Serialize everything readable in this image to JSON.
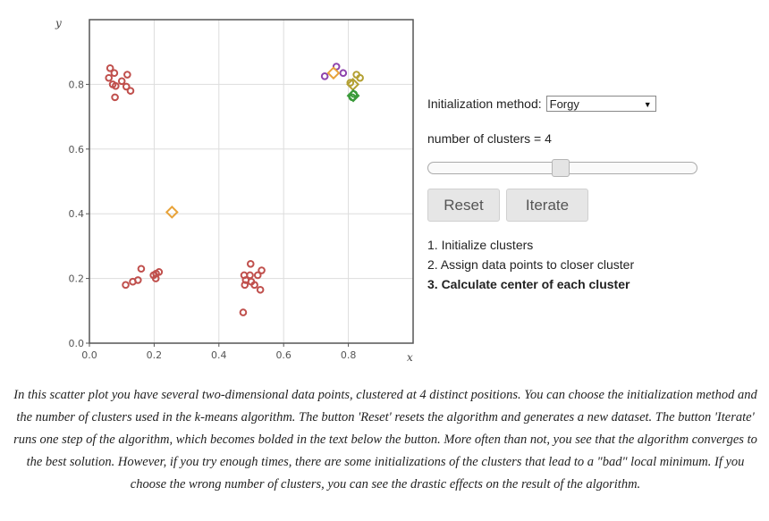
{
  "controls": {
    "init_label": "Initialization method:",
    "init_selected": "Forgy",
    "clusters_label": "number of clusters = 4",
    "slider_value_fraction": 0.49,
    "reset_label": "Reset",
    "iterate_label": "Iterate",
    "steps": [
      {
        "label": "1. Initialize clusters",
        "active": false
      },
      {
        "label": "2. Assign data points to closer cluster",
        "active": false
      },
      {
        "label": "3. Calculate center of each cluster",
        "active": true
      }
    ]
  },
  "description": "In this scatter plot you have several two-dimensional data points, clustered at 4 distinct positions. You can choose the initialization method and the number of clusters used in the k-means algorithm. The button 'Reset' resets the algorithm and generates a new dataset. The button 'Iterate' runs one step of the algorithm, which becomes bolded in the text below the button. More often than not, you see that the algorithm converges to the best solution. However, if you try enough times, there are some initializations of the clusters that lead to a \"bad\" local minimum. If you choose the wrong number of clusters, you can see the drastic effects on the result of the algorithm.",
  "chart_data": {
    "type": "scatter",
    "xlabel": "x",
    "ylabel": "y",
    "xlim": [
      0,
      1
    ],
    "ylim": [
      0,
      1
    ],
    "xticks": [
      "0.0",
      "0.2",
      "0.4",
      "0.6",
      "0.8"
    ],
    "yticks": [
      "0.0",
      "0.2",
      "0.4",
      "0.6",
      "0.8"
    ],
    "grid": true,
    "colors": {
      "red": "#c0504d",
      "purple": "#8e44ad",
      "olive": "#b3a032",
      "green": "#3a9a3a",
      "orange": "#e8a33a"
    },
    "points": [
      {
        "x": 0.064,
        "y": 0.85,
        "c": "red"
      },
      {
        "x": 0.077,
        "y": 0.835,
        "c": "red"
      },
      {
        "x": 0.06,
        "y": 0.82,
        "c": "red"
      },
      {
        "x": 0.117,
        "y": 0.83,
        "c": "red"
      },
      {
        "x": 0.1,
        "y": 0.81,
        "c": "red"
      },
      {
        "x": 0.072,
        "y": 0.8,
        "c": "red"
      },
      {
        "x": 0.081,
        "y": 0.795,
        "c": "red"
      },
      {
        "x": 0.114,
        "y": 0.793,
        "c": "red"
      },
      {
        "x": 0.127,
        "y": 0.78,
        "c": "red"
      },
      {
        "x": 0.079,
        "y": 0.76,
        "c": "red"
      },
      {
        "x": 0.16,
        "y": 0.23,
        "c": "red"
      },
      {
        "x": 0.215,
        "y": 0.22,
        "c": "red"
      },
      {
        "x": 0.206,
        "y": 0.215,
        "c": "red"
      },
      {
        "x": 0.198,
        "y": 0.21,
        "c": "red"
      },
      {
        "x": 0.205,
        "y": 0.2,
        "c": "red"
      },
      {
        "x": 0.15,
        "y": 0.195,
        "c": "red"
      },
      {
        "x": 0.134,
        "y": 0.19,
        "c": "red"
      },
      {
        "x": 0.112,
        "y": 0.18,
        "c": "red"
      },
      {
        "x": 0.498,
        "y": 0.245,
        "c": "red"
      },
      {
        "x": 0.532,
        "y": 0.225,
        "c": "red"
      },
      {
        "x": 0.478,
        "y": 0.21,
        "c": "red"
      },
      {
        "x": 0.496,
        "y": 0.21,
        "c": "red"
      },
      {
        "x": 0.52,
        "y": 0.21,
        "c": "red"
      },
      {
        "x": 0.483,
        "y": 0.195,
        "c": "red"
      },
      {
        "x": 0.5,
        "y": 0.19,
        "c": "red"
      },
      {
        "x": 0.48,
        "y": 0.18,
        "c": "red"
      },
      {
        "x": 0.51,
        "y": 0.18,
        "c": "red"
      },
      {
        "x": 0.528,
        "y": 0.165,
        "c": "red"
      },
      {
        "x": 0.475,
        "y": 0.095,
        "c": "red"
      },
      {
        "x": 0.763,
        "y": 0.855,
        "c": "purple"
      },
      {
        "x": 0.784,
        "y": 0.835,
        "c": "purple"
      },
      {
        "x": 0.727,
        "y": 0.825,
        "c": "purple"
      },
      {
        "x": 0.825,
        "y": 0.83,
        "c": "olive"
      },
      {
        "x": 0.836,
        "y": 0.82,
        "c": "olive"
      },
      {
        "x": 0.806,
        "y": 0.805,
        "c": "olive"
      },
      {
        "x": 0.817,
        "y": 0.77,
        "c": "green"
      },
      {
        "x": 0.812,
        "y": 0.76,
        "c": "green"
      }
    ],
    "centers": [
      {
        "x": 0.255,
        "y": 0.405,
        "c": "orange"
      },
      {
        "x": 0.754,
        "y": 0.835,
        "c": "orange"
      },
      {
        "x": 0.814,
        "y": 0.8,
        "c": "olive"
      },
      {
        "x": 0.815,
        "y": 0.765,
        "c": "green"
      }
    ]
  }
}
